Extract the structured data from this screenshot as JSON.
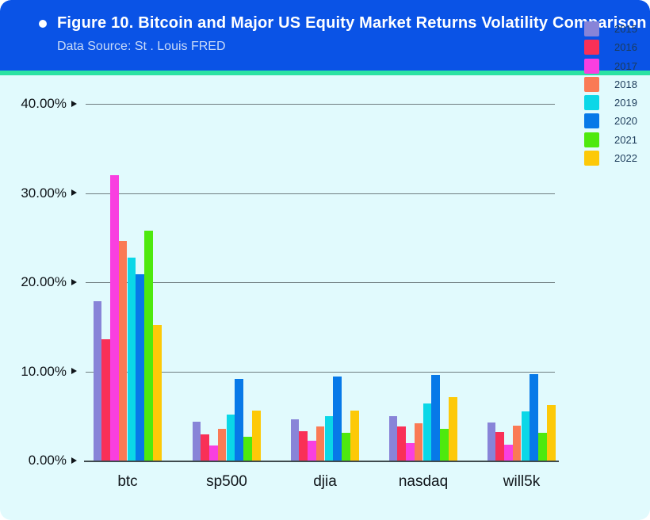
{
  "header": {
    "title": "Figure 10. Bitcoin and Major US Equity Market Returns Volatility Comparison",
    "subtitle": "Data Source: St . Louis FRED",
    "bg_color": "#0a53e6",
    "accent_bar_color": "#2ce2a2",
    "title_color": "#ffffff",
    "subtitle_color": "#c9dbf8"
  },
  "icons": {
    "bullet": "filled-circle",
    "y_tick_marker": "right-pointing-triangle"
  },
  "chart_data": {
    "type": "bar",
    "title": "Figure 10. Bitcoin and Major US Equity Market Returns Volatility Comparison",
    "subtitle": "Data Source: St . Louis FRED",
    "categories": [
      "btc",
      "sp500",
      "djia",
      "nasdaq",
      "will5k"
    ],
    "series": [
      {
        "name": "2015",
        "color": "#8884d8",
        "values": [
          17.9,
          4.4,
          4.6,
          5.0,
          4.3
        ]
      },
      {
        "name": "2016",
        "color": "#f93057",
        "values": [
          13.6,
          2.9,
          3.3,
          3.8,
          3.2
        ]
      },
      {
        "name": "2017",
        "color": "#f93fe0",
        "values": [
          32.0,
          1.7,
          2.2,
          2.0,
          1.8
        ]
      },
      {
        "name": "2018",
        "color": "#fa7a55",
        "values": [
          24.6,
          3.6,
          3.8,
          4.2,
          3.9
        ]
      },
      {
        "name": "2019",
        "color": "#0bd7e7",
        "values": [
          22.8,
          5.2,
          5.0,
          6.4,
          5.5
        ]
      },
      {
        "name": "2020",
        "color": "#0779e8",
        "values": [
          20.9,
          9.2,
          9.4,
          9.6,
          9.7
        ]
      },
      {
        "name": "2021",
        "color": "#4ee90e",
        "values": [
          25.8,
          2.7,
          3.1,
          3.6,
          3.1
        ]
      },
      {
        "name": "2022",
        "color": "#fdc908",
        "values": [
          15.2,
          5.6,
          5.6,
          7.1,
          6.2
        ]
      }
    ],
    "ylabel": "",
    "xlabel": "",
    "ylim": [
      0,
      40
    ],
    "yticks": [
      "40.00%",
      "30.00%",
      "20.00%",
      "10.00%",
      "0.00%"
    ],
    "grid": true,
    "legend_position": "right",
    "background_color": "#e1fafd",
    "gridline_color": "#6f7d80",
    "baseline_color": "#3f4b4e",
    "tick_text_color": "#0f1419",
    "legend_text_color": "#1c3b5a"
  }
}
